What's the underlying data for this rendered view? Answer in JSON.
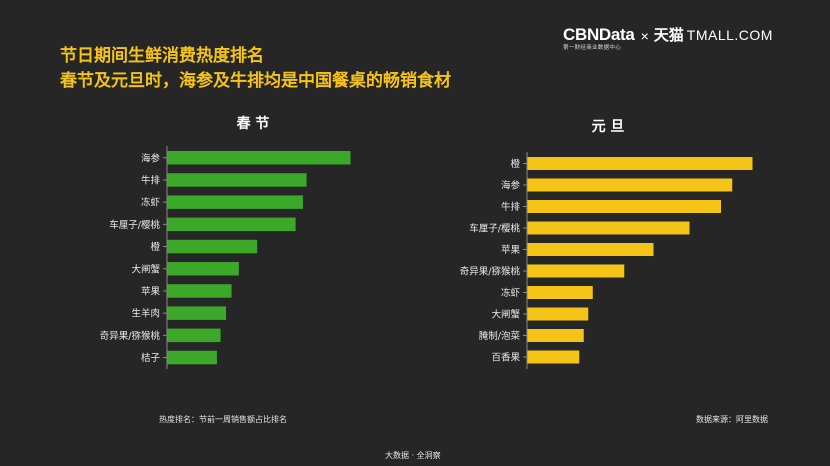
{
  "header": {
    "title_line1": "节日期间生鲜消费热度排名",
    "title_line2": "春节及元旦时，海参及牛排均是中国餐桌的畅销食材"
  },
  "logo": {
    "cbn_main": "CBNData",
    "cbn_sub": "第一财经商业数据中心",
    "times": "×",
    "tmall_cn": "天猫",
    "tmall_en": "TMALL.COM"
  },
  "chart_data": [
    {
      "type": "bar",
      "orientation": "horizontal",
      "title": "春 节",
      "categories": [
        "海参",
        "牛排",
        "冻虾",
        "车厘子/樱桃",
        "橙",
        "大闸蟹",
        "苹果",
        "生羊肉",
        "奇异果/猕猴桃",
        "桔子"
      ],
      "values": [
        100,
        76,
        74,
        70,
        49,
        39,
        35,
        32,
        29,
        27
      ],
      "color": "#3ba82a",
      "xlim": [
        0,
        100
      ],
      "grid": false
    },
    {
      "type": "bar",
      "orientation": "horizontal",
      "title": "元 旦",
      "categories": [
        "橙",
        "海参",
        "牛排",
        "车厘子/樱桃",
        "苹果",
        "奇异果/猕猴桃",
        "冻虾",
        "大闸蟹",
        "腌制/泡菜",
        "百香果"
      ],
      "values": [
        100,
        91,
        86,
        72,
        56,
        43,
        29,
        27,
        25,
        23
      ],
      "color": "#f6c416",
      "xlim": [
        0,
        100
      ],
      "grid": false
    }
  ],
  "footer": {
    "note_left": "热度排名：节前一周销售额占比排名",
    "note_right": "数据来源：阿里数据",
    "bottom": "大数据 · 全洞察"
  }
}
